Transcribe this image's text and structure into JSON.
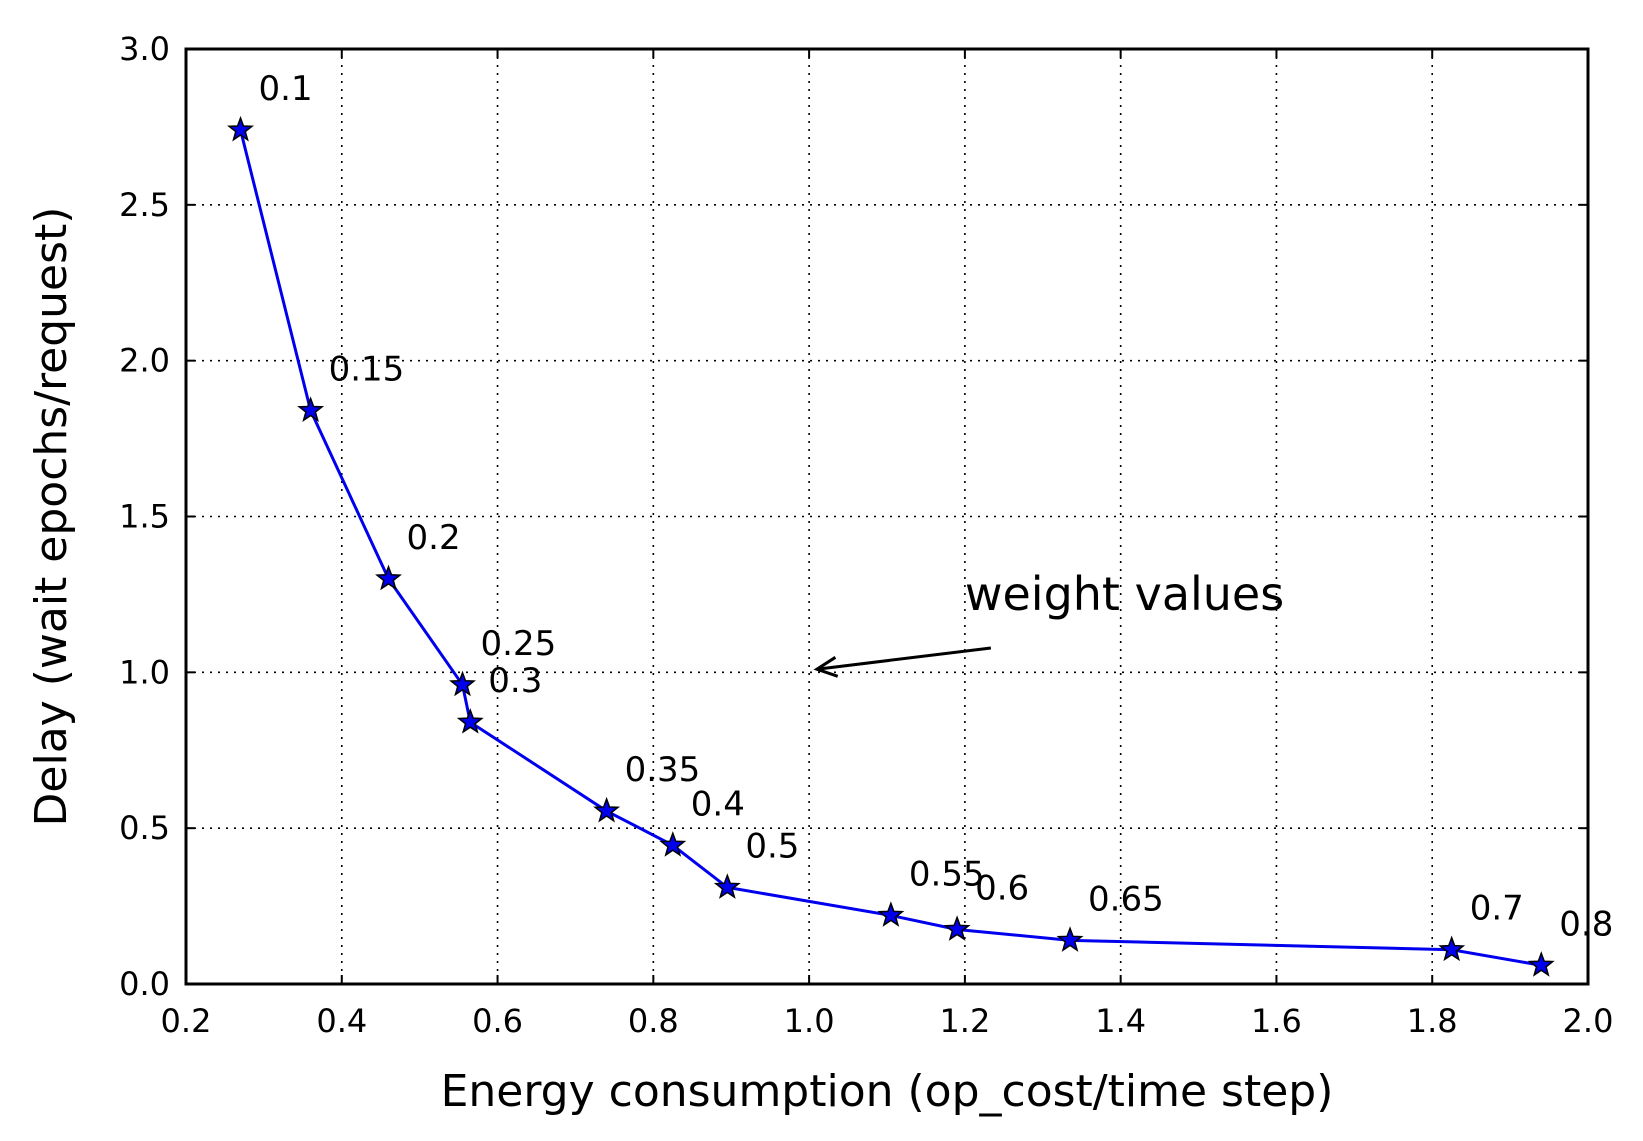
{
  "chart_data": {
    "type": "line",
    "title": "",
    "xlabel": "Energy consumption (op_cost/time step)",
    "ylabel": "Delay (wait epochs/request)",
    "xlim": [
      0.2,
      2.0
    ],
    "ylim": [
      0.0,
      3.0
    ],
    "xticks": [
      "0.2",
      "0.4",
      "0.6",
      "0.8",
      "1.0",
      "1.2",
      "1.4",
      "1.6",
      "1.8",
      "2.0"
    ],
    "yticks": [
      "0.0",
      "0.5",
      "1.0",
      "1.5",
      "2.0",
      "2.5",
      "3.0"
    ],
    "grid": true,
    "marker": "star",
    "line_color": "#0000ee",
    "marker_color": "#0000ee",
    "series": [
      {
        "points": [
          {
            "x": 0.27,
            "y": 2.74,
            "label": "0.1"
          },
          {
            "x": 0.36,
            "y": 1.84,
            "label": "0.15"
          },
          {
            "x": 0.46,
            "y": 1.3,
            "label": "0.2"
          },
          {
            "x": 0.555,
            "y": 0.96,
            "label": "0.25"
          },
          {
            "x": 0.565,
            "y": 0.84,
            "label": "0.3"
          },
          {
            "x": 0.74,
            "y": 0.555,
            "label": "0.35"
          },
          {
            "x": 0.825,
            "y": 0.445,
            "label": "0.4"
          },
          {
            "x": 0.895,
            "y": 0.31,
            "label": "0.5"
          },
          {
            "x": 1.105,
            "y": 0.22,
            "label": "0.55"
          },
          {
            "x": 1.19,
            "y": 0.175,
            "label": "0.6"
          },
          {
            "x": 1.335,
            "y": 0.14,
            "label": "0.65"
          },
          {
            "x": 1.825,
            "y": 0.11,
            "label": "0.7"
          },
          {
            "x": 1.94,
            "y": 0.06,
            "label": "0.8"
          }
        ]
      }
    ],
    "annotations": [
      {
        "text": "weight values",
        "x": 1.2,
        "y": 1.2,
        "arrow_to": {
          "x": 1.01,
          "y": 1.01
        }
      }
    ]
  }
}
